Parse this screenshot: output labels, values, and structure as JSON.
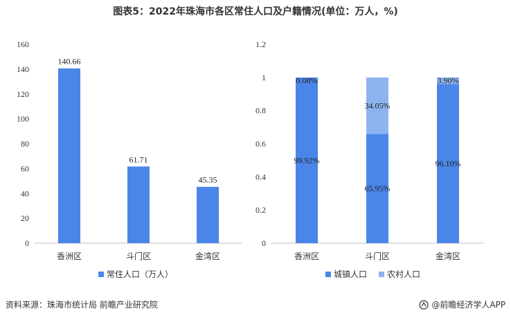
{
  "title": "图表5：2022年珠海市各区常住人口及户籍情况(单位：万人，%)",
  "colors": {
    "primary": "#4a86e8",
    "secondary": "#8db4ef",
    "axis": "#bfbfbf",
    "text": "#333333"
  },
  "chart_data": [
    {
      "type": "bar",
      "categories": [
        "香洲区",
        "斗门区",
        "金湾区"
      ],
      "series": [
        {
          "name": "常住人口（万人）",
          "values": [
            140.66,
            61.71,
            45.35
          ]
        }
      ],
      "ylim": [
        0,
        160
      ],
      "yticks": [
        "0",
        "20",
        "40",
        "60",
        "80",
        "100",
        "120",
        "140",
        "160"
      ],
      "data_labels": [
        "140.66",
        "61.71",
        "45.35"
      ],
      "legend": "bottom",
      "grid": false
    },
    {
      "type": "bar",
      "stacked": true,
      "categories": [
        "香洲区",
        "斗门区",
        "金湾区"
      ],
      "series": [
        {
          "name": "城镇人口",
          "values": [
            0.9992,
            0.6595,
            0.961
          ],
          "labels": [
            "99.92%",
            "65.95%",
            "96.10%"
          ]
        },
        {
          "name": "农村人口",
          "values": [
            0.0008,
            0.3405,
            0.039
          ],
          "labels": [
            "0.08%",
            "34.05%",
            "3.90%"
          ]
        }
      ],
      "ylim": [
        0,
        1.2
      ],
      "yticks": [
        "0",
        "0.2",
        "0.4",
        "0.6",
        "0.8",
        "1",
        "1.2"
      ],
      "legend": "bottom",
      "grid": false
    }
  ],
  "footer": {
    "source": "资料来源：珠海市统计局 前瞻产业研究院",
    "brand": "@前瞻经济学人APP"
  }
}
